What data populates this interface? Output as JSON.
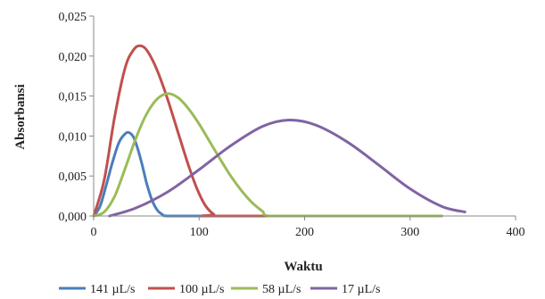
{
  "chart_data": {
    "type": "line",
    "title": "",
    "xlabel": "Waktu",
    "ylabel": "Absorbansi",
    "xlim": [
      0,
      400
    ],
    "ylim": [
      0,
      0.025
    ],
    "xticks": [
      "0",
      "100",
      "200",
      "300",
      "400"
    ],
    "yticks": [
      "0,000",
      "0,005",
      "0,010",
      "0,015",
      "0,020",
      "0,025"
    ],
    "grid": false,
    "legend_position": "bottom",
    "series": [
      {
        "name": "141 µL/s",
        "color": "#4a7ebb",
        "x": [
          0,
          6,
          12,
          18,
          24,
          30,
          34,
          38,
          42,
          46,
          50,
          55,
          60,
          65,
          70,
          100,
          330
        ],
        "y": [
          0,
          0.0012,
          0.0039,
          0.0068,
          0.0092,
          0.0103,
          0.0104,
          0.0098,
          0.0083,
          0.0064,
          0.0042,
          0.0021,
          0.0008,
          0.0002,
          0,
          0,
          0
        ]
      },
      {
        "name": "100 µL/s",
        "color": "#c0504d",
        "x": [
          0,
          10,
          20,
          30,
          38,
          44,
          50,
          58,
          66,
          74,
          82,
          90,
          98,
          106,
          114,
          120,
          330
        ],
        "y": [
          0,
          0.0045,
          0.0125,
          0.0186,
          0.0208,
          0.0213,
          0.0208,
          0.0189,
          0.0162,
          0.013,
          0.0096,
          0.0063,
          0.0034,
          0.0013,
          0.0002,
          0,
          0
        ]
      },
      {
        "name": "58 µL/s",
        "color": "#9bbb59",
        "x": [
          0,
          10,
          20,
          30,
          40,
          50,
          60,
          70,
          80,
          90,
          100,
          110,
          120,
          130,
          140,
          150,
          160,
          166,
          200,
          330
        ],
        "y": [
          0,
          0.0005,
          0.0025,
          0.006,
          0.0097,
          0.0127,
          0.0146,
          0.0153,
          0.0148,
          0.0134,
          0.0115,
          0.0093,
          0.0071,
          0.005,
          0.0032,
          0.0017,
          0.0006,
          0,
          0,
          0
        ]
      },
      {
        "name": "17 µL/s",
        "color": "#8064a2",
        "x": [
          15,
          40,
          70,
          100,
          130,
          160,
          185,
          210,
          240,
          270,
          300,
          330,
          352
        ],
        "y": [
          0,
          0.001,
          0.003,
          0.0058,
          0.0088,
          0.0112,
          0.012,
          0.0114,
          0.0093,
          0.0064,
          0.0034,
          0.0012,
          0.0005
        ]
      }
    ]
  }
}
